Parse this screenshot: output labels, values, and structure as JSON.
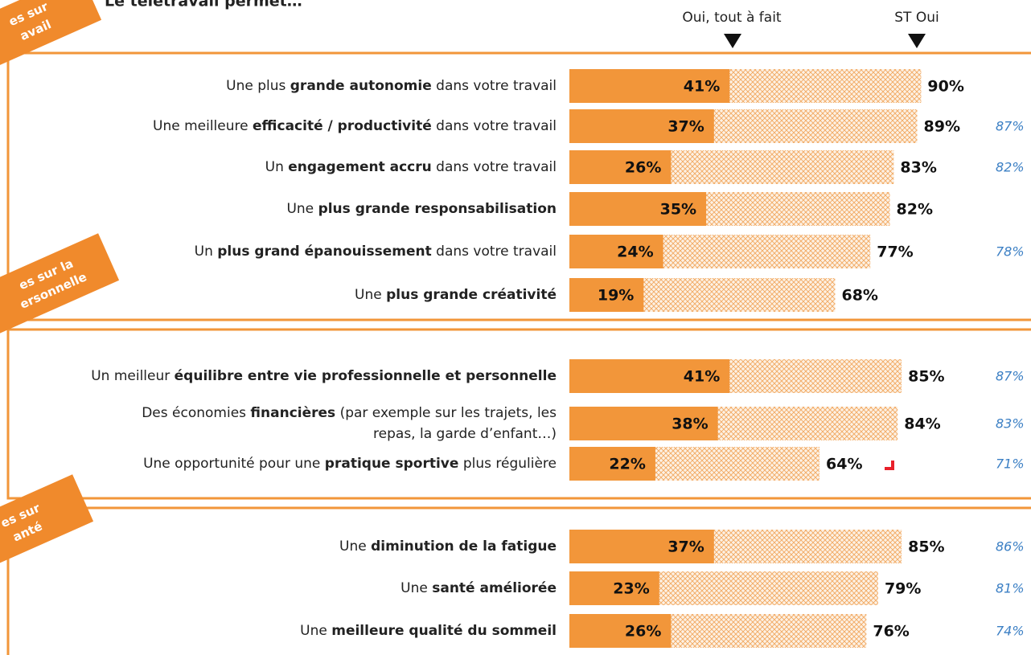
{
  "chart_data": {
    "type": "bar",
    "title": "Le télétravail permet…",
    "xlim": [
      0,
      100
    ],
    "groups": [
      {
        "lines": [
          "es sur",
          "avail"
        ]
      },
      {
        "lines": [
          "es sur  la",
          "ersonnelle"
        ]
      },
      {
        "lines": [
          "es sur",
          "anté"
        ]
      }
    ],
    "categories": [
      [
        [
          {
            "text": "Une plus "
          },
          {
            "text": "grande autonomie",
            "bold": true
          },
          {
            "text": " dans votre travail"
          }
        ]
      ],
      [
        [
          {
            "text": "Une meilleure "
          },
          {
            "text": "efficacité / productivité",
            "bold": true
          },
          {
            "text": " dans votre travail"
          }
        ]
      ],
      [
        [
          {
            "text": "Un "
          },
          {
            "text": "engagement accru",
            "bold": true
          },
          {
            "text": " dans votre travail"
          }
        ]
      ],
      [
        [
          {
            "text": "Une "
          },
          {
            "text": "plus grande responsabilisation",
            "bold": true
          }
        ]
      ],
      [
        [
          {
            "text": "Un "
          },
          {
            "text": "plus grand épanouissement",
            "bold": true
          },
          {
            "text": " dans votre travail"
          }
        ]
      ],
      [
        [
          {
            "text": "Une "
          },
          {
            "text": "plus grande créativité",
            "bold": true
          }
        ]
      ],
      [
        [
          {
            "text": "Un meilleur "
          },
          {
            "text": "équilibre entre vie professionnelle et personnelle",
            "bold": true
          }
        ]
      ],
      [
        [
          {
            "text": "Des économies "
          },
          {
            "text": "financières",
            "bold": true
          },
          {
            "text": " (par exemple sur les trajets, les"
          }
        ],
        [
          {
            "text": "repas, la garde d’enfant…)"
          }
        ]
      ],
      [
        [
          {
            "text": "Une opportunité pour une "
          },
          {
            "text": "pratique sportive",
            "bold": true
          },
          {
            "text": " plus régulière"
          }
        ]
      ],
      [
        [
          {
            "text": "Une "
          },
          {
            "text": "diminution de la fatigue",
            "bold": true
          }
        ]
      ],
      [
        [
          {
            "text": "Une "
          },
          {
            "text": "santé améliorée",
            "bold": true
          }
        ]
      ],
      [
        [
          {
            "text": "Une "
          },
          {
            "text": "meilleure qualité du sommeil",
            "bold": true
          }
        ]
      ]
    ],
    "series": [
      {
        "name": "Oui, tout à fait",
        "color": "#f2963a",
        "values": [
          41,
          37,
          26,
          35,
          24,
          19,
          41,
          38,
          22,
          37,
          23,
          26
        ],
        "value_labels": [
          "41%",
          "37%",
          "26%",
          "35%",
          "24%",
          "19%",
          "41%",
          "38%",
          "22%",
          "37%",
          "23%",
          "26%"
        ]
      },
      {
        "name": "ST Oui",
        "color": "#f2963a",
        "pattern": "crosshatch",
        "values": [
          90,
          89,
          83,
          82,
          77,
          68,
          85,
          84,
          64,
          85,
          79,
          76
        ],
        "value_labels": [
          "90%",
          "89%",
          "83%",
          "82%",
          "77%",
          "68%",
          "85%",
          "84%",
          "64%",
          "85%",
          "79%",
          "76%"
        ]
      }
    ],
    "previous": {
      "color": "#3b7fc4",
      "values": [
        null,
        87,
        82,
        null,
        78,
        null,
        87,
        83,
        71,
        86,
        81,
        74
      ],
      "value_labels": [
        null,
        "87%",
        "82%",
        null,
        "78%",
        null,
        "87%",
        "83%",
        "71%",
        "86%",
        "81%",
        "74%"
      ]
    }
  }
}
